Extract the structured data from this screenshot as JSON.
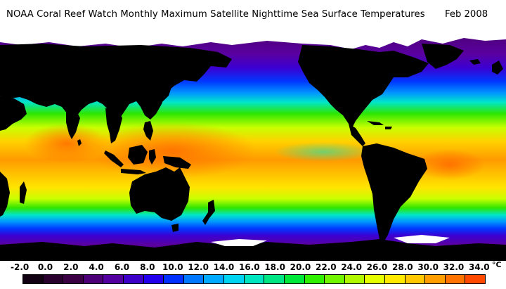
{
  "title": {
    "text": "NOAA Coral Reef Watch Monthly Maximum Satellite Nighttime Sea Surface Temperatures",
    "date": "Feb 2008"
  },
  "colors": {
    "land": "#000000",
    "ice": "#ffffff",
    "ocean_ramp": [
      "#4b0073",
      "#5a00a0",
      "#3c00d2",
      "#0038ff",
      "#0096ff",
      "#00e6c8",
      "#2ee600",
      "#c8ff00",
      "#ffd200",
      "#ff7800"
    ]
  },
  "legend": {
    "ticks": [
      "-2.0",
      "0.0",
      "2.0",
      "4.0",
      "6.0",
      "8.0",
      "10.0",
      "12.0",
      "14.0",
      "16.0",
      "18.0",
      "20.0",
      "22.0",
      "24.0",
      "26.0",
      "28.0",
      "30.0",
      "32.0",
      "34.0"
    ],
    "unit": "°C",
    "colors": [
      "#120013",
      "#2a002e",
      "#3b0043",
      "#4c0078",
      "#5300a0",
      "#3d00c9",
      "#2200ee",
      "#0030ff",
      "#0078ff",
      "#00aaff",
      "#00d4f2",
      "#00e6c0",
      "#00e684",
      "#00e83a",
      "#2ef000",
      "#72f500",
      "#b0f800",
      "#e6ff00",
      "#ffea00",
      "#ffc800",
      "#ff9e00",
      "#ff7400",
      "#ff4800"
    ]
  }
}
